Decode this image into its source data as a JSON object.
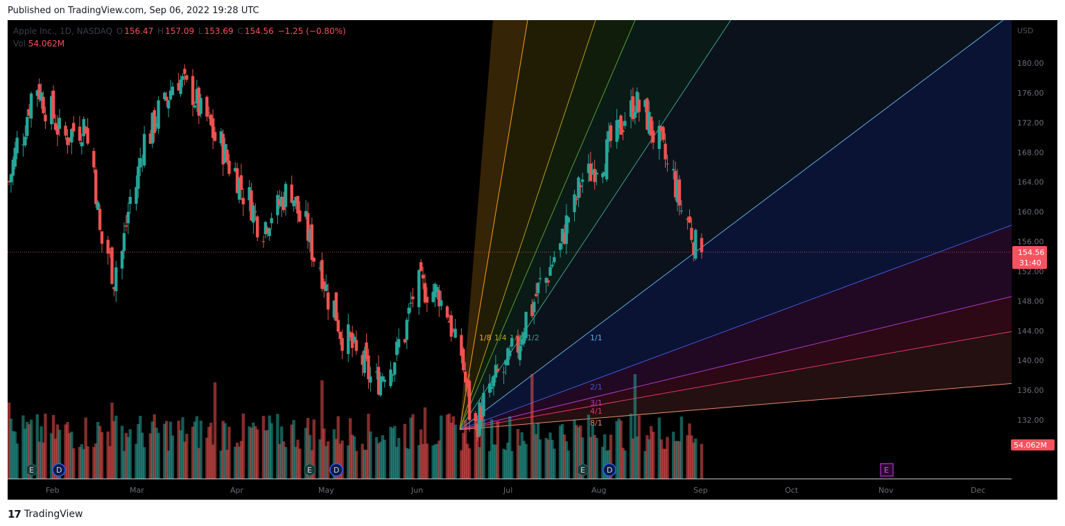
{
  "header": {
    "published": "Published on TradingView.com, Sep 06, 2022 19:28 UTC"
  },
  "legend": {
    "symbol": "Apple Inc., 1D, NASDAQ",
    "o_label": "O",
    "o": "156.47",
    "h_label": "H",
    "h": "157.09",
    "l_label": "L",
    "l": "153.69",
    "c_label": "C",
    "c": "154.56",
    "change": "−1.25 (−0.80%)",
    "vol_label": "Vol",
    "vol": "54.062M"
  },
  "axis": {
    "currency": "USD",
    "y_ticks": [
      "180.00",
      "176.00",
      "172.00",
      "168.00",
      "164.00",
      "160.00",
      "156.00",
      "152.00",
      "148.00",
      "144.00",
      "140.00",
      "136.00",
      "132.00"
    ],
    "x_ticks": [
      "Feb",
      "Mar",
      "Apr",
      "May",
      "Jun",
      "Jul",
      "Aug",
      "Sep",
      "Oct",
      "Nov",
      "Dec"
    ],
    "price_badge": "154.56",
    "countdown": "31:40",
    "volume_badge": "54.062M"
  },
  "fan": {
    "labels": [
      "1/8",
      "1/4",
      "1/3",
      "1/2",
      "1/1",
      "2/1",
      "3/1",
      "4/1",
      "8/1"
    ],
    "colors": [
      "#f7a21b",
      "#b7a21b",
      "#58a03a",
      "#3fa18d",
      "#5faee0",
      "#3d5bd9",
      "#b13acb",
      "#e8336e",
      "#f08a6e"
    ]
  },
  "events": {
    "earnings": "E",
    "dividend": "D"
  },
  "colors": {
    "up": "#26a69a",
    "down": "#ef5350",
    "background": "#000000"
  },
  "footer": {
    "brand": "TradingView"
  },
  "chart_data": {
    "type": "candlestick",
    "symbol": "AAPL",
    "interval": "1D",
    "ylim": [
      129,
      184
    ],
    "last_close": 154.56,
    "ohlc_notable": [
      {
        "label": "Mar 30 high",
        "value": 179.6
      },
      {
        "label": "Jun 16 low",
        "value": 129.0
      },
      {
        "label": "Aug 17 high",
        "value": 176.2
      },
      {
        "label": "Sep 02 close",
        "value": 154.56
      }
    ]
  }
}
